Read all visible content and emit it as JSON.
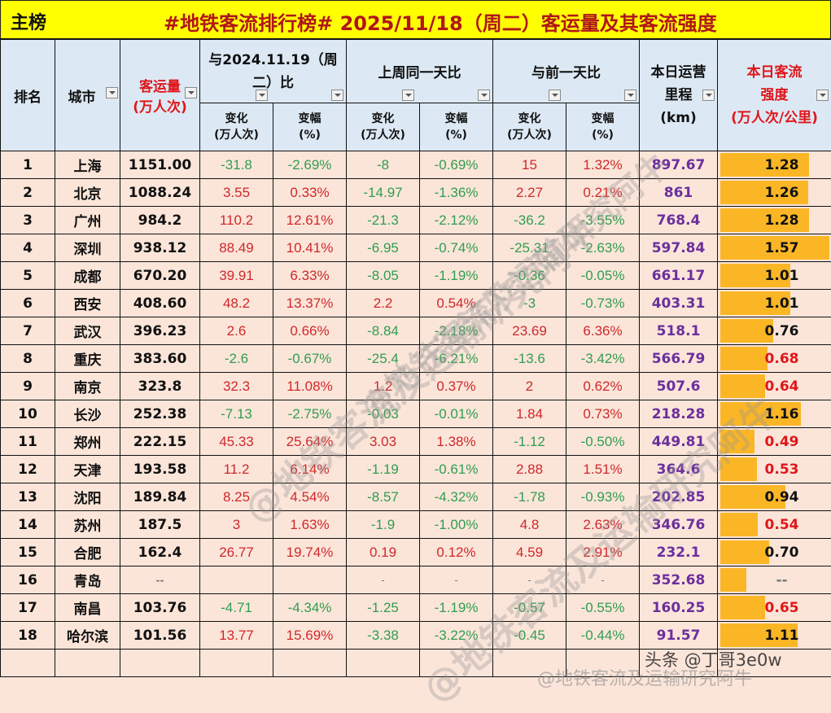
{
  "title_bar": {
    "tag": "主榜",
    "title": "#地铁客流排行榜# 2025/11/18（周二）客运量及其客流强度"
  },
  "headers": {
    "rank": "排名",
    "city": "城市",
    "volume_line1": "客运量",
    "volume_line2": "(万人次)",
    "yoy_group": "与2024.11.19（周二）比",
    "wow_group": "上周同一天比",
    "dod_group": "与前一天比",
    "change_line1": "变化",
    "change_line2": "(万人次)",
    "pct_line1": "变幅",
    "pct_line2": "(%)",
    "mileage_line1": "本日运营",
    "mileage_line2": "里程",
    "mileage_line3": "(km)",
    "intensity_line1": "本日客流",
    "intensity_line2": "强度",
    "intensity_line3": "(万人次/公里)"
  },
  "colors": {
    "title_bg": "#ffff00",
    "title_text": "#b0161a",
    "header_bg": "#dce9f4",
    "row_bg": "#fbe5d9",
    "positive": "#d0282b",
    "negative": "#2f9e4f",
    "mileage": "#6b2f9e",
    "intensity_bar": "#fbb626"
  },
  "rows": [
    {
      "rank": "1",
      "city": "上海",
      "volume": "1151.00",
      "yoy_chg": "-31.8",
      "yoy_pct": "-2.69%",
      "wow_chg": "-8",
      "wow_pct": "-0.69%",
      "dod_chg": "15",
      "dod_pct": "1.32%",
      "mileage": "897.67",
      "intensity": "1.28"
    },
    {
      "rank": "2",
      "city": "北京",
      "volume": "1088.24",
      "yoy_chg": "3.55",
      "yoy_pct": "0.33%",
      "wow_chg": "-14.97",
      "wow_pct": "-1.36%",
      "dod_chg": "2.27",
      "dod_pct": "0.21%",
      "mileage": "861",
      "intensity": "1.26"
    },
    {
      "rank": "3",
      "city": "广州",
      "volume": "984.2",
      "yoy_chg": "110.2",
      "yoy_pct": "12.61%",
      "wow_chg": "-21.3",
      "wow_pct": "-2.12%",
      "dod_chg": "-36.2",
      "dod_pct": "-3.55%",
      "mileage": "768.4",
      "intensity": "1.28"
    },
    {
      "rank": "4",
      "city": "深圳",
      "volume": "938.12",
      "yoy_chg": "88.49",
      "yoy_pct": "10.41%",
      "wow_chg": "-6.95",
      "wow_pct": "-0.74%",
      "dod_chg": "-25.31",
      "dod_pct": "-2.63%",
      "mileage": "597.84",
      "intensity": "1.57"
    },
    {
      "rank": "5",
      "city": "成都",
      "volume": "670.20",
      "yoy_chg": "39.91",
      "yoy_pct": "6.33%",
      "wow_chg": "-8.05",
      "wow_pct": "-1.19%",
      "dod_chg": "-0.36",
      "dod_pct": "-0.05%",
      "mileage": "661.17",
      "intensity": "1.01"
    },
    {
      "rank": "6",
      "city": "西安",
      "volume": "408.60",
      "yoy_chg": "48.2",
      "yoy_pct": "13.37%",
      "wow_chg": "2.2",
      "wow_pct": "0.54%",
      "dod_chg": "-3",
      "dod_pct": "-0.73%",
      "mileage": "403.31",
      "intensity": "1.01"
    },
    {
      "rank": "7",
      "city": "武汉",
      "volume": "396.23",
      "yoy_chg": "2.6",
      "yoy_pct": "0.66%",
      "wow_chg": "-8.84",
      "wow_pct": "-2.18%",
      "dod_chg": "23.69",
      "dod_pct": "6.36%",
      "mileage": "518.1",
      "intensity": "0.76"
    },
    {
      "rank": "8",
      "city": "重庆",
      "volume": "383.60",
      "yoy_chg": "-2.6",
      "yoy_pct": "-0.67%",
      "wow_chg": "-25.4",
      "wow_pct": "-6.21%",
      "dod_chg": "-13.6",
      "dod_pct": "-3.42%",
      "mileage": "566.79",
      "intensity": "0.68"
    },
    {
      "rank": "9",
      "city": "南京",
      "volume": "323.8",
      "yoy_chg": "32.3",
      "yoy_pct": "11.08%",
      "wow_chg": "1.2",
      "wow_pct": "0.37%",
      "dod_chg": "2",
      "dod_pct": "0.62%",
      "mileage": "507.6",
      "intensity": "0.64"
    },
    {
      "rank": "10",
      "city": "长沙",
      "volume": "252.38",
      "yoy_chg": "-7.13",
      "yoy_pct": "-2.75%",
      "wow_chg": "-0.03",
      "wow_pct": "-0.01%",
      "dod_chg": "1.84",
      "dod_pct": "0.73%",
      "mileage": "218.28",
      "intensity": "1.16"
    },
    {
      "rank": "11",
      "city": "郑州",
      "volume": "222.15",
      "yoy_chg": "45.33",
      "yoy_pct": "25.64%",
      "wow_chg": "3.03",
      "wow_pct": "1.38%",
      "dod_chg": "-1.12",
      "dod_pct": "-0.50%",
      "mileage": "449.81",
      "intensity": "0.49"
    },
    {
      "rank": "12",
      "city": "天津",
      "volume": "193.58",
      "yoy_chg": "11.2",
      "yoy_pct": "6.14%",
      "wow_chg": "-1.19",
      "wow_pct": "-0.61%",
      "dod_chg": "2.88",
      "dod_pct": "1.51%",
      "mileage": "364.6",
      "intensity": "0.53"
    },
    {
      "rank": "13",
      "city": "沈阳",
      "volume": "189.84",
      "yoy_chg": "8.25",
      "yoy_pct": "4.54%",
      "wow_chg": "-8.57",
      "wow_pct": "-4.32%",
      "dod_chg": "-1.78",
      "dod_pct": "-0.93%",
      "mileage": "202.85",
      "intensity": "0.94"
    },
    {
      "rank": "14",
      "city": "苏州",
      "volume": "187.5",
      "yoy_chg": "3",
      "yoy_pct": "1.63%",
      "wow_chg": "-1.9",
      "wow_pct": "-1.00%",
      "dod_chg": "4.8",
      "dod_pct": "2.63%",
      "mileage": "346.76",
      "intensity": "0.54"
    },
    {
      "rank": "15",
      "city": "合肥",
      "volume": "162.4",
      "yoy_chg": "26.77",
      "yoy_pct": "19.74%",
      "wow_chg": "0.19",
      "wow_pct": "0.12%",
      "dod_chg": "4.59",
      "dod_pct": "2.91%",
      "mileage": "232.1",
      "intensity": "0.70"
    },
    {
      "rank": "16",
      "city": "青岛",
      "volume": "--",
      "yoy_chg": "",
      "yoy_pct": "",
      "wow_chg": "-",
      "wow_pct": "-",
      "dod_chg": "-",
      "dod_pct": "-",
      "mileage": "352.68",
      "intensity": "--"
    },
    {
      "rank": "17",
      "city": "南昌",
      "volume": "103.76",
      "yoy_chg": "-4.71",
      "yoy_pct": "-4.34%",
      "wow_chg": "-1.25",
      "wow_pct": "-1.19%",
      "dod_chg": "-0.57",
      "dod_pct": "-0.55%",
      "mileage": "160.25",
      "intensity": "0.65"
    },
    {
      "rank": "18",
      "city": "哈尔滨",
      "volume": "101.56",
      "yoy_chg": "13.77",
      "yoy_pct": "15.69%",
      "wow_chg": "-3.38",
      "wow_pct": "-3.22%",
      "dod_chg": "-0.45",
      "dod_pct": "-0.44%",
      "mileage": "91.57",
      "intensity": "1.11"
    }
  ],
  "watermarks": {
    "diagonal": "@地铁客流及运输研究阿牛",
    "toutiao": "头条 @丁哥3e0w",
    "weibo": "@地铁客流及运输研究阿牛"
  }
}
